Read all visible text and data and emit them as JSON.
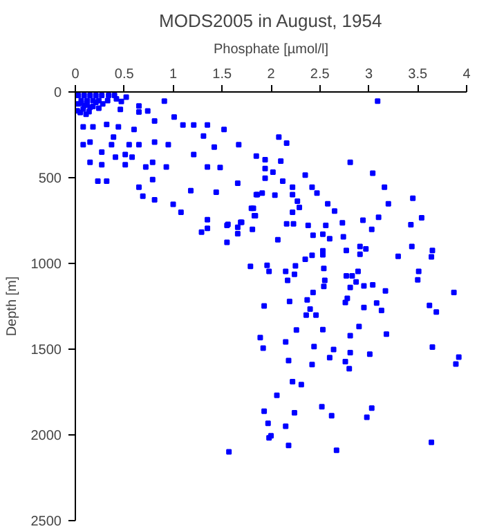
{
  "chart_data": {
    "type": "scatter",
    "title": "MODS2005 in August, 1954",
    "xlabel": "Phosphate [µmol/l]",
    "ylabel": "Depth [m]",
    "xlim": [
      0,
      4
    ],
    "xticks": [
      0,
      0.5,
      1,
      1.5,
      2,
      2.5,
      3,
      3.5,
      4
    ],
    "ylim": [
      2500,
      0
    ],
    "yticks": [
      0,
      500,
      1000,
      1500,
      2000,
      2500
    ],
    "grid": false,
    "marker": "square",
    "series": [
      {
        "color": "#0000ff",
        "x": [
          0.03,
          0.09,
          0.15,
          0.21,
          0.27,
          0.06,
          0.12,
          0.18,
          0.24,
          0.03,
          0.06,
          0.09,
          0.12,
          0.15,
          0.18,
          0.21,
          0.24,
          0.28,
          0.02,
          0.05,
          0.08,
          0.11,
          0.14,
          0.34,
          0.33,
          0.4,
          0.42,
          0.47,
          0.52,
          0.91,
          1.01,
          1.1,
          1.21,
          1.35,
          1.52,
          1.31,
          1.67,
          1.85,
          1.42,
          1.21,
          1.35,
          1.48,
          1.66,
          1.86,
          1.44,
          1.18,
          1.0,
          1.08,
          1.35,
          1.56,
          1.7,
          1.82,
          0.65,
          0.81,
          0.6,
          0.81,
          0.95,
          0.65,
          0.55,
          0.79,
          0.93,
          0.72,
          0.51,
          0.32,
          0.23,
          0.65,
          0.69,
          0.81,
          0.79,
          0.27,
          0.15,
          0.08,
          0.15,
          0.27,
          0.37,
          0.41,
          0.51,
          0.58,
          0.08,
          0.18,
          0.32,
          0.44,
          0.39,
          0.46,
          0.65,
          0.74,
          3.09,
          2.08,
          2.16,
          1.94,
          2.1,
          1.94,
          2.02,
          1.94,
          2.12,
          2.35,
          2.81,
          3.04,
          3.16,
          3.2,
          3.45,
          3.54,
          3.1,
          2.94,
          2.73,
          2.65,
          2.58,
          2.47,
          2.42,
          2.29,
          2.27,
          2.22,
          2.22,
          2.04,
          1.91,
          1.85,
          1.8,
          1.84,
          2.22,
          2.16,
          2.23,
          2.38,
          2.56,
          3.43,
          1.81,
          2.07,
          2.43,
          2.53,
          2.6,
          2.74,
          3.03,
          2.91,
          2.97,
          2.91,
          2.77,
          2.53,
          2.53,
          2.42,
          2.35,
          3.44,
          3.65,
          3.64,
          3.3,
          1.79,
          1.96,
          1.98,
          2.15,
          2.25,
          2.24,
          2.17,
          2.54,
          2.77,
          2.83,
          2.89,
          2.87,
          2.95,
          3.04,
          3.17,
          2.81,
          2.55,
          2.54,
          2.43,
          2.37,
          2.19,
          1.93,
          2.76,
          2.78,
          2.95,
          3.08,
          3.13,
          2.4,
          2.36,
          2.46,
          3.51,
          3.5,
          3.87,
          3.62,
          3.69,
          3.18,
          2.9,
          2.81,
          2.53,
          2.26,
          1.89,
          2.15,
          1.92,
          2.44,
          2.64,
          2.81,
          3.01,
          2.6,
          2.76,
          2.18,
          2.42,
          2.8,
          3.65,
          3.92,
          3.89,
          2.22,
          2.31,
          2.06,
          1.93,
          1.97,
          1.98,
          2.0,
          2.15,
          2.24,
          2.18,
          2.52,
          2.62,
          2.67,
          2.98,
          3.03,
          3.64,
          1.57,
          1.29,
          1.35,
          1.55,
          1.55,
          1.66,
          1.66,
          1.69,
          1.83
        ],
        "values": [
          20,
          20,
          20,
          20,
          20,
          50,
          50,
          50,
          50,
          70,
          65,
          80,
          75,
          90,
          85,
          60,
          95,
          70,
          110,
          120,
          100,
          130,
          115,
          20,
          50,
          20,
          40,
          55,
          30,
          53,
          146,
          193,
          193,
          193,
          219,
          257,
          307,
          374,
          322,
          365,
          438,
          441,
          532,
          599,
          585,
          576,
          655,
          702,
          745,
          772,
          760,
          678,
          82,
          169,
          219,
          292,
          307,
          307,
          307,
          410,
          438,
          438,
          424,
          520,
          520,
          555,
          608,
          629,
          511,
          424,
          410,
          307,
          292,
          351,
          307,
          380,
          365,
          380,
          204,
          204,
          190,
          204,
          263,
          102,
          117,
          111,
          53,
          263,
          298,
          395,
          403,
          447,
          468,
          503,
          520,
          485,
          410,
          474,
          555,
          652,
          620,
          734,
          731,
          748,
          763,
          695,
          652,
          590,
          555,
          673,
          637,
          555,
          599,
          602,
          590,
          599,
          678,
          722,
          702,
          769,
          769,
          778,
          778,
          774,
          801,
          862,
          836,
          830,
          856,
          845,
          801,
          901,
          915,
          947,
          924,
          926,
          950,
          953,
          976,
          901,
          924,
          962,
          959,
          1017,
          1011,
          1046,
          1046,
          1014,
          1064,
          1099,
          1029,
          1073,
          1073,
          1046,
          1108,
          1131,
          1125,
          1160,
          1140,
          1099,
          1134,
          1169,
          1213,
          1222,
          1248,
          1228,
          1204,
          1257,
          1231,
          1274,
          1266,
          1301,
          1301,
          1046,
          1096,
          1169,
          1245,
          1283,
          1412,
          1368,
          1421,
          1386,
          1388,
          1432,
          1458,
          1494,
          1485,
          1502,
          1520,
          1529,
          1549,
          1573,
          1567,
          1590,
          1614,
          1488,
          1546,
          1587,
          1690,
          1707,
          1769,
          1862,
          1932,
          2017,
          2005,
          1950,
          1871,
          2061,
          1836,
          1888,
          2090,
          1897,
          1844,
          2043,
          2099,
          818,
          795,
          877,
          778,
          789,
          827,
          760,
          722
        ]
      }
    ]
  }
}
